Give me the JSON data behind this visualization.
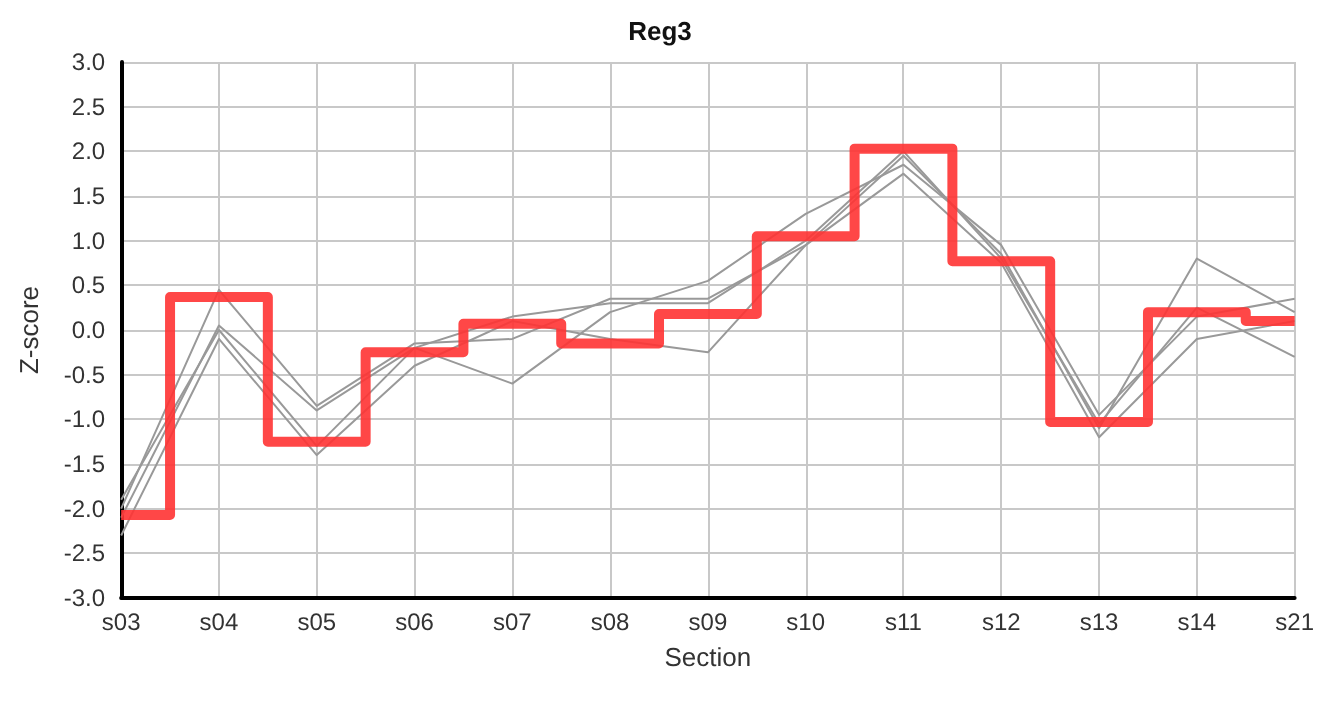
{
  "chart_data": {
    "type": "line",
    "title": "Reg3",
    "xlabel": "Section",
    "ylabel": "Z-score",
    "categories": [
      "s03",
      "s04",
      "s05",
      "s06",
      "s07",
      "s08",
      "s09",
      "s10",
      "s11",
      "s12",
      "s13",
      "s14",
      "s21"
    ],
    "series": [
      {
        "color": "#999999",
        "values": [
          -2.0,
          0.45,
          -0.85,
          -0.15,
          -0.1,
          0.35,
          0.35,
          0.95,
          1.95,
          0.85,
          -1.1,
          0.8,
          0.2
        ]
      },
      {
        "color": "#999999",
        "values": [
          -2.1,
          0.05,
          -0.9,
          -0.2,
          -0.6,
          0.2,
          0.55,
          1.3,
          1.85,
          0.95,
          -0.95,
          0.15,
          0.35
        ]
      },
      {
        "color": "#999999",
        "values": [
          -1.9,
          0.0,
          -1.3,
          -0.2,
          0.15,
          0.3,
          0.3,
          1.0,
          2.0,
          0.8,
          -1.05,
          0.25,
          -0.3
        ]
      },
      {
        "color": "#999999",
        "values": [
          -2.3,
          -0.1,
          -1.4,
          -0.4,
          0.1,
          -0.1,
          -0.25,
          0.95,
          1.75,
          0.75,
          -1.2,
          -0.1,
          0.1
        ]
      },
      {
        "type": "step",
        "color": "#ff3333",
        "values": [
          -2.07,
          0.37,
          -1.25,
          -0.25,
          0.07,
          -0.15,
          0.18,
          1.05,
          2.03,
          0.77,
          -1.03,
          0.2,
          0.1
        ]
      }
    ],
    "ylim": [
      -3.0,
      3.0
    ],
    "yticks": [
      {
        "value": -3,
        "label": "-3.0"
      },
      {
        "value": -2.5,
        "label": "-2.5"
      },
      {
        "value": -2,
        "label": "-2.0"
      },
      {
        "value": -1.5,
        "label": "-1.5"
      },
      {
        "value": -1,
        "label": "-1.0"
      },
      {
        "value": -0.5,
        "label": "-0.5"
      },
      {
        "value": 0,
        "label": "0.0"
      },
      {
        "value": 0.5,
        "label": "0.5"
      },
      {
        "value": 1,
        "label": "1.0"
      },
      {
        "value": 1.5,
        "label": "1.5"
      },
      {
        "value": 2,
        "label": "2.0"
      },
      {
        "value": 2.5,
        "label": "2.5"
      },
      {
        "value": 3,
        "label": "3.0"
      }
    ],
    "grid": true,
    "marker": "none",
    "line_style": "solid"
  }
}
